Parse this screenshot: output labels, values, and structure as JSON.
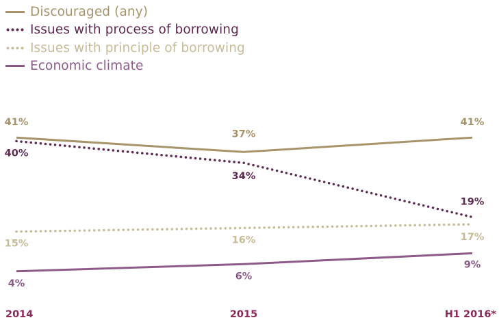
{
  "chart_data": {
    "type": "line",
    "title": "",
    "xlabel": "",
    "ylabel": "",
    "categories": [
      "2014",
      "2015",
      "H1 2016*"
    ],
    "ylim": [
      0,
      45
    ],
    "grid": false,
    "legend_position": "top-left",
    "series": [
      {
        "name": "Discouraged (any)",
        "values": [
          41,
          37,
          41
        ],
        "labels": [
          "41%",
          "37%",
          "41%"
        ],
        "color": "#a8946a",
        "style": "solid"
      },
      {
        "name": "Issues with process of borrowing",
        "values": [
          40,
          34,
          19
        ],
        "labels": [
          "40%",
          "34%",
          "19%"
        ],
        "color": "#5e2a51",
        "style": "dotted"
      },
      {
        "name": "Issues with principle of borrowing",
        "values": [
          15,
          16,
          17
        ],
        "labels": [
          "15%",
          "16%",
          "17%"
        ],
        "color": "#c8bc98",
        "style": "dotted"
      },
      {
        "name": "Economic climate",
        "values": [
          4,
          6,
          9
        ],
        "labels": [
          "4%",
          "6%",
          "9%"
        ],
        "color": "#8e5a8a",
        "style": "solid"
      }
    ]
  }
}
